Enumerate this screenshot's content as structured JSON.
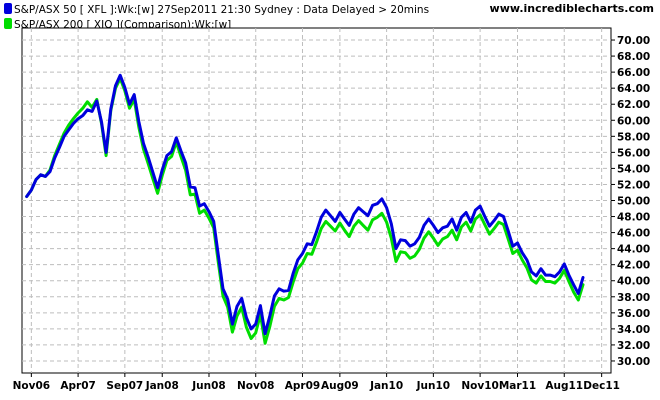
{
  "header": {
    "series1_legend": "S&P/ASX 50 [ XFL ]:Wk:[w]  27Sep2011 21:30 Sydney : Data Delayed > 20mins",
    "series2_legend": "S&P/ASX 200 [ XJO ](Comparison):Wk:[w]",
    "brand": "www.incrediblecharts.com"
  },
  "colors": {
    "series1": "#0000dd",
    "series2": "#00dd00",
    "grid": "#bdbdbd",
    "axis": "#000000"
  },
  "chart_data": {
    "type": "line",
    "title": "",
    "xlabel": "",
    "ylabel": "",
    "ylim": [
      28.5,
      71.5
    ],
    "y_ticks": [
      "30.00",
      "32.00",
      "34.00",
      "36.00",
      "38.00",
      "40.00",
      "42.00",
      "44.00",
      "46.00",
      "48.00",
      "50.00",
      "52.00",
      "54.00",
      "56.00",
      "58.00",
      "60.00",
      "62.00",
      "64.00",
      "66.00",
      "68.00",
      "70.00"
    ],
    "x_ticks": [
      "Nov06",
      "Apr07",
      "Sep07",
      "Jan08",
      "Jun08",
      "Nov08",
      "Apr09",
      "Aug09",
      "Jan10",
      "Jun10",
      "Nov10",
      "Mar11",
      "Aug11",
      "Dec11"
    ],
    "x_tick_months": [
      0,
      5,
      10,
      14,
      19,
      24,
      29,
      33,
      38,
      43,
      48,
      52,
      57,
      61
    ],
    "xlim_months": [
      -1,
      62
    ],
    "grid": true,
    "legend_position": "top-left",
    "y_axis_position": "right",
    "series": [
      {
        "name": "S&P/ASX 50 [ XFL ]",
        "x_months": [
          -0.5,
          0,
          0.5,
          1,
          1.5,
          2,
          2.5,
          3,
          3.5,
          4,
          4.5,
          5,
          5.5,
          6,
          6.5,
          7,
          7.5,
          8,
          8.5,
          9,
          9.5,
          10,
          10.5,
          11,
          11.5,
          12,
          12.5,
          13,
          13.5,
          14,
          14.5,
          15,
          15.5,
          16,
          16.5,
          17,
          17.5,
          18,
          18.5,
          19,
          19.5,
          20,
          20.5,
          21,
          21.5,
          22,
          22.5,
          23,
          23.5,
          24,
          24.5,
          25,
          25.5,
          26,
          26.5,
          27,
          27.5,
          28,
          28.5,
          29,
          29.5,
          30,
          30.5,
          31,
          31.5,
          32,
          32.5,
          33,
          33.5,
          34,
          34.5,
          35,
          35.5,
          36,
          36.5,
          37,
          37.5,
          38,
          38.5,
          39,
          39.5,
          40,
          40.5,
          41,
          41.5,
          42,
          42.5,
          43,
          43.5,
          44,
          44.5,
          45,
          45.5,
          46,
          46.5,
          47,
          47.5,
          48,
          48.5,
          49,
          49.5,
          50,
          50.5,
          51,
          51.5,
          52,
          52.5,
          53,
          53.5,
          54,
          54.5,
          55,
          55.5,
          56,
          56.5,
          57,
          57.5,
          58,
          58.5,
          59
        ],
        "values": [
          50.5,
          51.3,
          52.6,
          53.2,
          53.0,
          53.6,
          55.3,
          56.6,
          58.0,
          58.8,
          59.6,
          60.2,
          60.6,
          61.3,
          61.1,
          62.4,
          59.8,
          56.0,
          61.4,
          64.3,
          65.6,
          64.1,
          62.0,
          63.2,
          59.8,
          57.1,
          55.4,
          53.5,
          51.6,
          53.8,
          55.6,
          56.1,
          57.8,
          56.2,
          54.7,
          51.7,
          51.6,
          49.3,
          49.6,
          48.6,
          47.4,
          43.2,
          39.0,
          37.7,
          34.6,
          36.8,
          37.8,
          35.4,
          34.0,
          34.6,
          36.9,
          33.4,
          35.6,
          38.1,
          39.0,
          38.7,
          38.8,
          40.9,
          42.6,
          43.4,
          44.6,
          44.5,
          46.1,
          47.9,
          48.8,
          48.1,
          47.4,
          48.5,
          47.7,
          46.9,
          48.3,
          49.1,
          48.6,
          48.1,
          49.4,
          49.6,
          50.2,
          49.1,
          47.1,
          44.0,
          45.1,
          45.0,
          44.3,
          44.6,
          45.4,
          46.9,
          47.7,
          46.9,
          46.0,
          46.6,
          46.8,
          47.7,
          46.3,
          47.9,
          48.5,
          47.3,
          48.8,
          49.3,
          48.0,
          46.8,
          47.5,
          48.3,
          48.0,
          46.2,
          44.3,
          44.7,
          43.5,
          42.6,
          41.1,
          40.6,
          41.5,
          40.7,
          40.7,
          40.5,
          41.1,
          42.1,
          40.7,
          39.5,
          38.4,
          40.4
        ]
      },
      {
        "name": "S&P/ASX 200 [ XJO ](Comparison)",
        "x_months": [
          -0.5,
          0,
          0.5,
          1,
          1.5,
          2,
          2.5,
          3,
          3.5,
          4,
          4.5,
          5,
          5.5,
          6,
          6.5,
          7,
          7.5,
          8,
          8.5,
          9,
          9.5,
          10,
          10.5,
          11,
          11.5,
          12,
          12.5,
          13,
          13.5,
          14,
          14.5,
          15,
          15.5,
          16,
          16.5,
          17,
          17.5,
          18,
          18.5,
          19,
          19.5,
          20,
          20.5,
          21,
          21.5,
          22,
          22.5,
          23,
          23.5,
          24,
          24.5,
          25,
          25.5,
          26,
          26.5,
          27,
          27.5,
          28,
          28.5,
          29,
          29.5,
          30,
          30.5,
          31,
          31.5,
          32,
          32.5,
          33,
          33.5,
          34,
          34.5,
          35,
          35.5,
          36,
          36.5,
          37,
          37.5,
          38,
          38.5,
          39,
          39.5,
          40,
          40.5,
          41,
          41.5,
          42,
          42.5,
          43,
          43.5,
          44,
          44.5,
          45,
          45.5,
          46,
          46.5,
          47,
          47.5,
          48,
          48.5,
          49,
          49.5,
          50,
          50.5,
          51,
          51.5,
          52,
          52.5,
          53,
          53.5,
          54,
          54.5,
          55,
          55.5,
          56,
          56.5,
          57,
          57.5,
          58,
          58.5,
          59
        ],
        "values": [
          50.5,
          51.3,
          52.6,
          53.2,
          53.0,
          53.8,
          55.6,
          57.0,
          58.4,
          59.4,
          60.2,
          60.9,
          61.5,
          62.3,
          61.6,
          62.6,
          59.6,
          55.6,
          61.2,
          64.0,
          65.2,
          63.7,
          61.5,
          62.6,
          59.1,
          56.4,
          54.6,
          52.7,
          50.9,
          53.1,
          55.0,
          55.5,
          57.3,
          55.5,
          53.8,
          50.7,
          50.8,
          48.4,
          48.8,
          47.8,
          46.6,
          42.3,
          38.1,
          36.7,
          33.6,
          35.6,
          36.7,
          34.2,
          32.8,
          33.5,
          35.8,
          32.2,
          34.3,
          36.8,
          37.8,
          37.6,
          37.9,
          39.8,
          41.5,
          42.2,
          43.4,
          43.3,
          44.8,
          46.5,
          47.4,
          46.8,
          46.2,
          47.2,
          46.3,
          45.5,
          46.8,
          47.5,
          46.9,
          46.3,
          47.6,
          47.9,
          48.4,
          47.3,
          45.3,
          42.4,
          43.6,
          43.5,
          42.8,
          43.1,
          43.9,
          45.3,
          46.1,
          45.3,
          44.4,
          45.2,
          45.5,
          46.3,
          45.1,
          46.7,
          47.3,
          46.2,
          47.7,
          48.2,
          47.0,
          45.8,
          46.5,
          47.3,
          47.0,
          45.2,
          43.4,
          43.8,
          42.6,
          41.6,
          40.1,
          39.7,
          40.6,
          39.9,
          39.9,
          39.7,
          40.3,
          41.3,
          39.9,
          38.6,
          37.6,
          39.5
        ]
      }
    ]
  }
}
